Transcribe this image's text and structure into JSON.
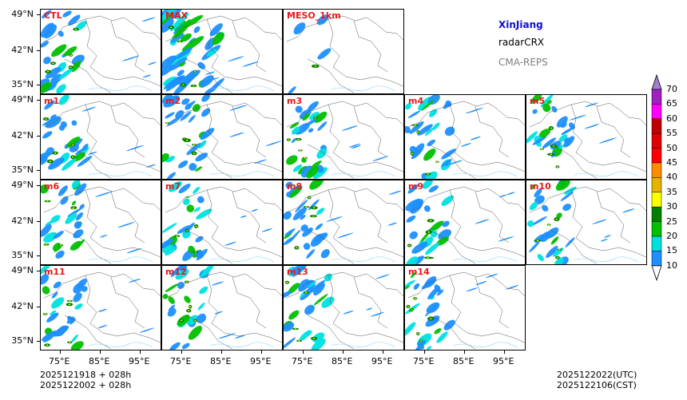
{
  "header": {
    "region": "XinJiang",
    "product": "radarCRX",
    "model": "CMA-REPS",
    "region_color": "#1010d0",
    "product_color": "#000000",
    "model_color": "#7f7f7f"
  },
  "panels": [
    "CTL",
    "MAX",
    "MESO_1km",
    "m1",
    "m2",
    "m3",
    "m4",
    "m5",
    "m6",
    "m7",
    "m8",
    "m9",
    "m10",
    "m11",
    "m12",
    "m13",
    "m14"
  ],
  "y_ticks": [
    "49°N",
    "42°N",
    "35°N"
  ],
  "x_ticks": [
    "75°E",
    "85°E",
    "95°E"
  ],
  "init_times": {
    "line1": "2025121918  +  028h",
    "line2": "2025122002  +  028h"
  },
  "valid_times": {
    "utc": "2025122022(UTC)",
    "cst": "2025122106(CST)"
  },
  "colorbar": {
    "labels": [
      "70",
      "65",
      "60",
      "55",
      "50",
      "45",
      "40",
      "35",
      "30",
      "25",
      "20",
      "15",
      "10"
    ],
    "colors": [
      "#a020c0",
      "#ff00ff",
      "#c00000",
      "#e00000",
      "#ff0000",
      "#ff8c00",
      "#e6b400",
      "#ffff00",
      "#008000",
      "#00c000",
      "#00e0e0",
      "#1e90ff"
    ],
    "over_color": "#a080d0"
  }
}
